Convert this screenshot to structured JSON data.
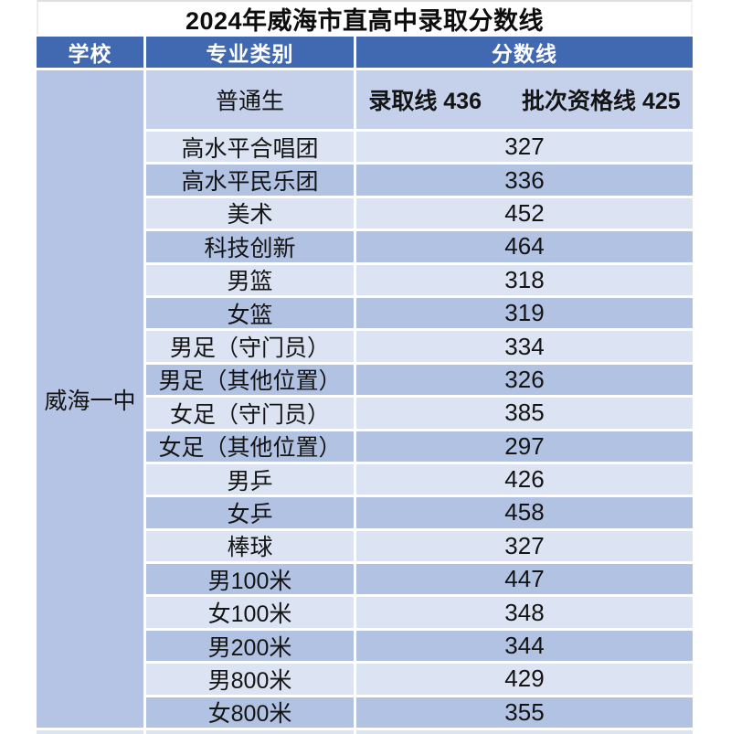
{
  "title": "2024年威海市直高中录取分数线",
  "table": {
    "headers": {
      "school": "学校",
      "category": "专业类别",
      "score": "分数线"
    },
    "school_name": "威海一中",
    "general_row": {
      "category": "普通生",
      "admission_line": "录取线 436",
      "batch_qualification_line": "批次资格线 425"
    },
    "rows": [
      {
        "category": "高水平合唱团",
        "score": "327"
      },
      {
        "category": "高水平民乐团",
        "score": "336"
      },
      {
        "category": "美术",
        "score": "452"
      },
      {
        "category": "科技创新",
        "score": "464"
      },
      {
        "category": "男篮",
        "score": "318"
      },
      {
        "category": "女篮",
        "score": "319"
      },
      {
        "category": "男足（守门员）",
        "score": "334"
      },
      {
        "category": "男足（其他位置）",
        "score": "326"
      },
      {
        "category": "女足（守门员）",
        "score": "385"
      },
      {
        "category": "女足（其他位置）",
        "score": "297"
      },
      {
        "category": "男乒",
        "score": "426"
      },
      {
        "category": "女乒",
        "score": "458"
      },
      {
        "category": "棒球",
        "score": "327"
      },
      {
        "category": "男100米",
        "score": "447"
      },
      {
        "category": "女100米",
        "score": "348"
      },
      {
        "category": "男200米",
        "score": "344"
      },
      {
        "category": "男800米",
        "score": "429"
      },
      {
        "category": "女800米",
        "score": "355"
      }
    ]
  },
  "colors": {
    "header_bg": "#4169b2",
    "school_column_bg": "#b5c4e4",
    "row_light": "#dce3f2",
    "row_dark": "#b1c2e3",
    "general_row_bg": "#c5d1eb",
    "separator": "#ffffff",
    "text": "#141414"
  }
}
